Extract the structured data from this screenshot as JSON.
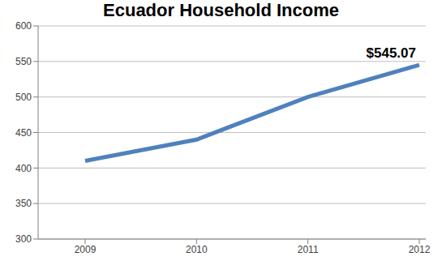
{
  "chart_data": {
    "type": "line",
    "title": "Ecuador Household Income",
    "categories": [
      "2009",
      "2010",
      "2011",
      "2012"
    ],
    "values": [
      410,
      440,
      500,
      545.07
    ],
    "value_labels": [
      null,
      null,
      null,
      "$545.07"
    ],
    "color": "#4f81bd",
    "ylim": [
      300,
      600
    ],
    "yticks": [
      300,
      350,
      400,
      450,
      500,
      550,
      600
    ],
    "grid": true
  }
}
